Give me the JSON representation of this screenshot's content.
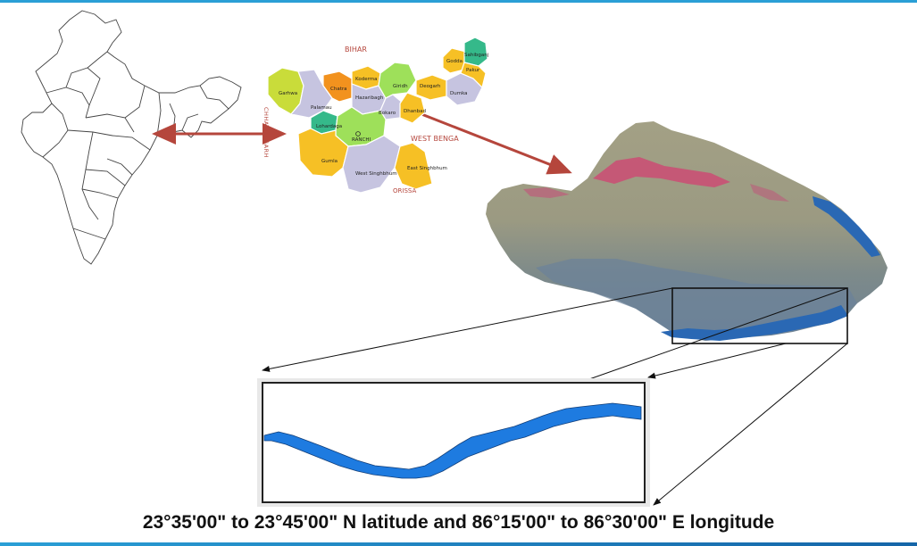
{
  "caption": "23°35'00\" to 23°45'00\" N latitude and 86°15'00\" to 86°30'00\" E longitude",
  "state_map": {
    "neighbors": {
      "north": "BIHAR",
      "west": "CHHATTISGARH",
      "east": "WEST BENGA",
      "south": "ORISSA"
    },
    "districts": [
      "Garhwa",
      "Chatra",
      "Koderma",
      "Giridh",
      "Deogarh",
      "Godda",
      "Sahibganj",
      "Pakur",
      "Dumka",
      "Palamau",
      "Hazaribagh",
      "Bokaro",
      "Dhanbad",
      "Lohardaga",
      "RANCHI",
      "Gumla",
      "West Singhbhum",
      "East Singhbhum"
    ]
  },
  "colors": {
    "arrow": "#b5463c",
    "river": "#1e7be0",
    "frame": "#2a9fd6",
    "neighbor_label": "#b5463c"
  }
}
